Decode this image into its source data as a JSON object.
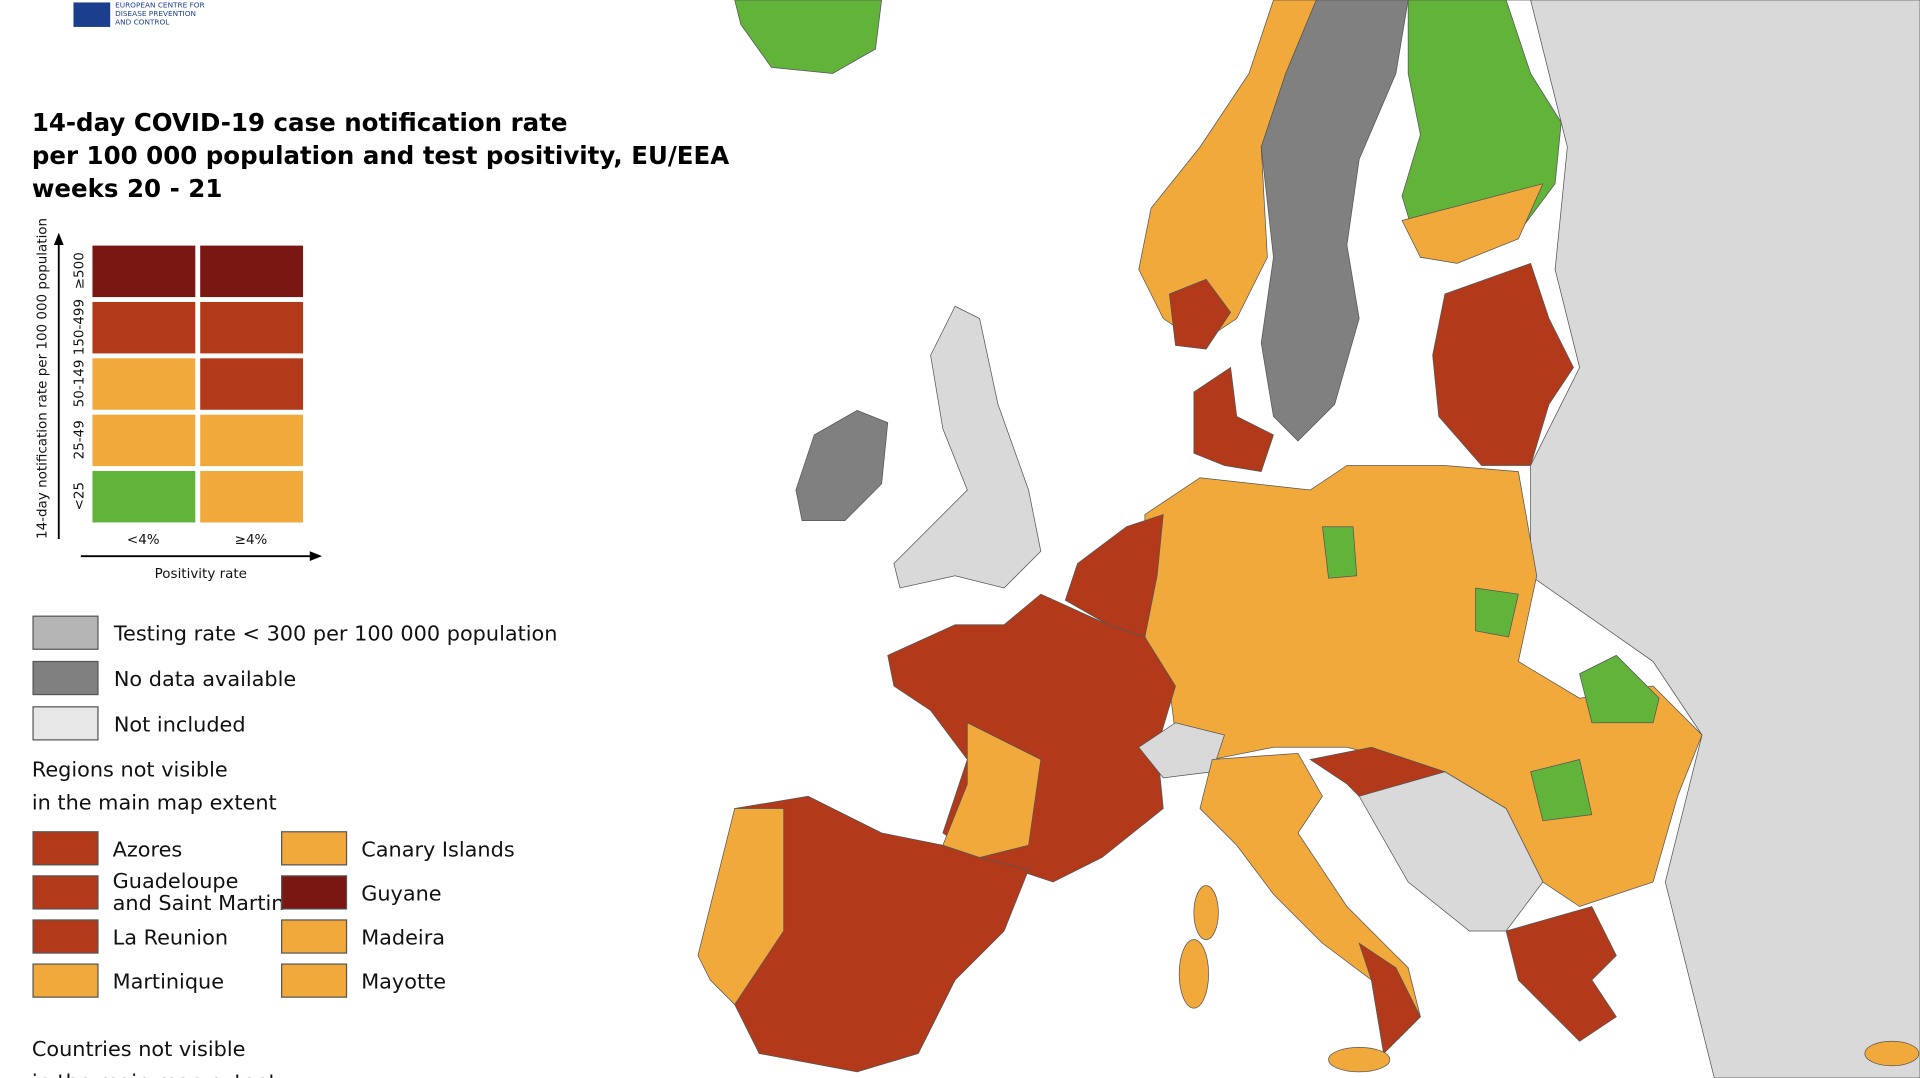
{
  "header": {
    "logo_lines": [
      "EUROPEAN CENTRE FOR",
      "DISEASE PREVENTION",
      "AND CONTROL"
    ]
  },
  "title": [
    "14-day COVID-19 case notification rate",
    "per 100 000 population and test positivity, EU/EEA",
    "weeks 20 - 21"
  ],
  "matrix": {
    "y_axis_label": "14-day notification rate per 100 000 population",
    "x_axis_label": "Positivity rate",
    "rows": [
      "≥500",
      "150-499",
      "50-149",
      "25-49",
      "<25"
    ],
    "columns": [
      "<4%",
      "≥4%"
    ]
  },
  "legend": [
    "Testing rate < 300 per 100 000 population",
    "No data available",
    "Not included"
  ],
  "regions": {
    "title": [
      "Regions not visible",
      "in the main map extent"
    ],
    "items": [
      [
        "Azores"
      ],
      [
        "Canary Islands"
      ],
      [
        "Guadeloupe",
        "and Saint Martin"
      ],
      [
        "Guyane"
      ],
      [
        "La Reunion"
      ],
      [
        "Madeira"
      ],
      [
        "Martinique"
      ],
      [
        "Mayotte"
      ]
    ]
  },
  "countries": {
    "title": [
      "Countries not visible",
      "in the main map extent"
    ]
  }
}
